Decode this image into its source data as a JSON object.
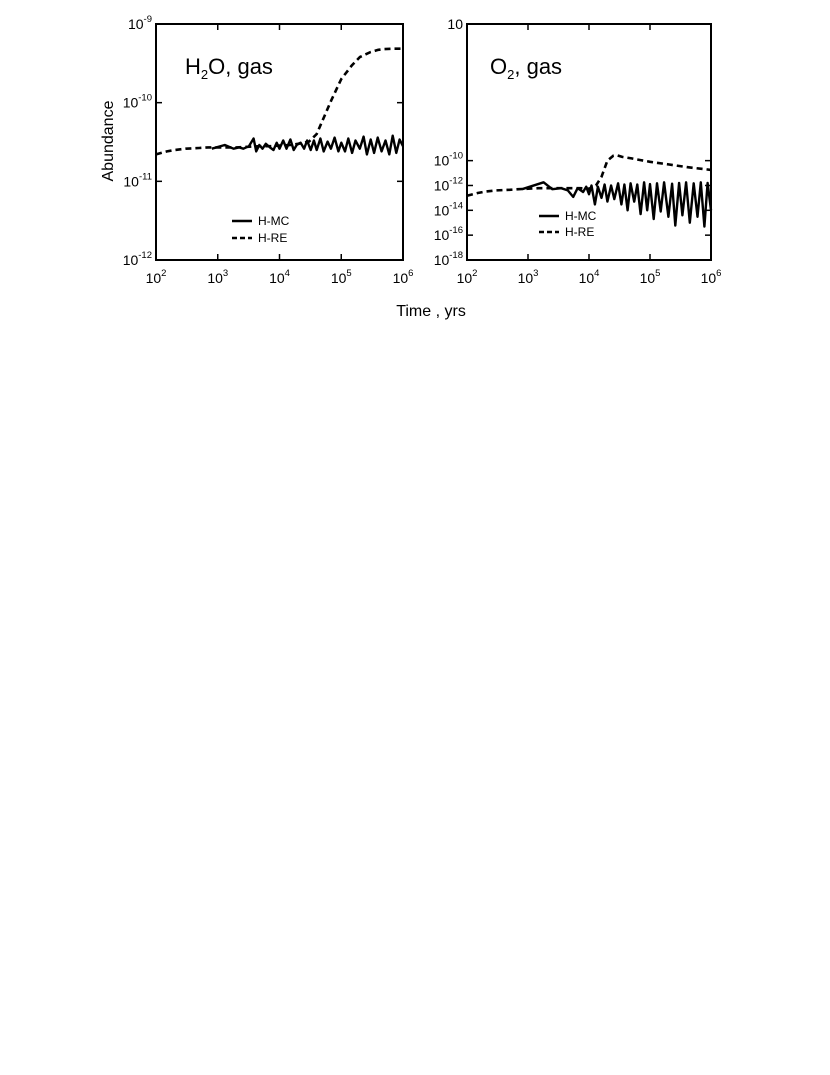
{
  "figure": {
    "xlabel": "Time , yrs",
    "ylabel": "Abundance"
  },
  "chart_data": [
    {
      "type": "line",
      "title": {
        "base": "H",
        "sub": "2",
        "rest": "O, gas"
      },
      "xlabel": "Time , yrs",
      "ylabel": "Abundance",
      "xscale": "log",
      "yscale": "log",
      "xlim": [
        100,
        1000000
      ],
      "ylim": [
        1e-12,
        1e-09
      ],
      "xticks": [
        {
          "base": "10",
          "exp": "2",
          "value": 100
        },
        {
          "base": "10",
          "exp": "3",
          "value": 1000
        },
        {
          "base": "10",
          "exp": "4",
          "value": 10000
        },
        {
          "base": "10",
          "exp": "5",
          "value": 100000
        },
        {
          "base": "10",
          "exp": "6",
          "value": 1000000
        }
      ],
      "yticks": [
        {
          "base": "10",
          "exp": "-12",
          "value": 1e-12
        },
        {
          "base": "10",
          "exp": "-11",
          "value": 1e-11
        },
        {
          "base": "10",
          "exp": "-10",
          "value": 1e-10
        },
        {
          "base": "10",
          "exp": "-9",
          "value": 1e-09
        }
      ],
      "legend_position": "bottom-center",
      "series": [
        {
          "name": "H-MC",
          "style": "solid",
          "x": [
            800,
            1300,
            1800,
            2200,
            2600,
            3200,
            3800,
            4200,
            4700,
            5300,
            6000,
            7000,
            8000,
            9000,
            10000,
            11500,
            13000,
            15000,
            17000,
            19000,
            22000,
            25000,
            28000,
            32000,
            36000,
            40000,
            46000,
            52000,
            60000,
            68000,
            78000,
            90000,
            100000,
            115000,
            130000,
            150000,
            170000,
            200000,
            230000,
            260000,
            300000,
            340000,
            390000,
            450000,
            520000,
            600000,
            680000,
            780000,
            880000,
            1000000
          ],
          "y": [
            2.6e-11,
            2.9e-11,
            2.6e-11,
            2.7e-11,
            2.6e-11,
            2.8e-11,
            3.5e-11,
            2.4e-11,
            2.9e-11,
            2.6e-11,
            3e-11,
            2.7e-11,
            2.5e-11,
            3.1e-11,
            2.6e-11,
            3.3e-11,
            2.6e-11,
            3.4e-11,
            2.5e-11,
            2.9e-11,
            3.1e-11,
            2.6e-11,
            3.3e-11,
            2.5e-11,
            3.3e-11,
            2.5e-11,
            3.5e-11,
            2.4e-11,
            3.2e-11,
            2.6e-11,
            3.6e-11,
            2.4e-11,
            3.1e-11,
            2.4e-11,
            3.5e-11,
            2.3e-11,
            3.3e-11,
            2.6e-11,
            3.7e-11,
            2.2e-11,
            3.4e-11,
            2.3e-11,
            3.6e-11,
            2.4e-11,
            3.3e-11,
            2.2e-11,
            3.8e-11,
            2.3e-11,
            3.4e-11,
            2.8e-11
          ]
        },
        {
          "name": "H-RE",
          "style": "dashed",
          "x": [
            100,
            150,
            200,
            300,
            500,
            700,
            1000,
            1500,
            2000,
            3000,
            5000,
            7000,
            10000,
            15000,
            20000,
            30000,
            40000,
            50000,
            70000,
            100000,
            150000,
            200000,
            300000,
            400000,
            500000,
            700000,
            1000000
          ],
          "y": [
            2.2e-11,
            2.4e-11,
            2.5e-11,
            2.6e-11,
            2.65e-11,
            2.7e-11,
            2.7e-11,
            2.7e-11,
            2.7e-11,
            2.75e-11,
            2.8e-11,
            2.8e-11,
            2.85e-11,
            2.9e-11,
            3e-11,
            3.2e-11,
            4e-11,
            6e-11,
            1.1e-10,
            2e-10,
            3e-10,
            3.8e-10,
            4.4e-10,
            4.7e-10,
            4.8e-10,
            4.85e-10,
            4.85e-10
          ]
        }
      ]
    },
    {
      "type": "line",
      "title": {
        "base": "O",
        "sub": "2",
        "rest": ", gas"
      },
      "xlabel": "Time , yrs",
      "ylabel": "",
      "xscale": "log",
      "yscale": "log",
      "xlim": [
        100,
        1000000
      ],
      "ylim": [
        1e-18,
        10
      ],
      "xticks": [
        {
          "base": "10",
          "exp": "2",
          "value": 100
        },
        {
          "base": "10",
          "exp": "3",
          "value": 1000
        },
        {
          "base": "10",
          "exp": "4",
          "value": 10000
        },
        {
          "base": "10",
          "exp": "5",
          "value": 100000
        },
        {
          "base": "10",
          "exp": "6",
          "value": 1000000
        }
      ],
      "yticks": [
        {
          "base": "10",
          "exp": "-18",
          "value": 1e-18
        },
        {
          "base": "10",
          "exp": "-16",
          "value": 1e-16
        },
        {
          "base": "10",
          "exp": "-14",
          "value": 1e-14
        },
        {
          "base": "10",
          "exp": "-12",
          "value": 1e-12
        },
        {
          "base": "10",
          "exp": "-10",
          "value": 1e-10
        },
        {
          "base": "10",
          "exp": "",
          "value": 10
        }
      ],
      "legend_position": "bottom-center",
      "series": [
        {
          "name": "H-MC",
          "style": "solid",
          "x": [
            800,
            1800,
            2500,
            3500,
            4500,
            5500,
            6500,
            8000,
            9000,
            10000,
            11000,
            12500,
            14000,
            16000,
            18000,
            20000,
            23000,
            26000,
            30000,
            34000,
            38000,
            43000,
            48000,
            55000,
            62000,
            70000,
            80000,
            90000,
            100000,
            115000,
            130000,
            150000,
            170000,
            200000,
            230000,
            260000,
            300000,
            340000,
            390000,
            450000,
            520000,
            600000,
            680000,
            780000,
            880000,
            1000000
          ],
          "y": [
            5e-13,
            1.8e-12,
            5e-13,
            6e-13,
            4e-13,
            1.2e-13,
            6e-13,
            3e-13,
            8e-13,
            2e-13,
            1e-12,
            3e-14,
            8e-13,
            1e-13,
            1.2e-12,
            5e-14,
            1e-12,
            8e-14,
            1.5e-12,
            3e-14,
            1.2e-12,
            1e-14,
            1.5e-12,
            5e-14,
            1.2e-12,
            5e-15,
            1.8e-12,
            1e-14,
            1.3e-12,
            2e-15,
            1.5e-12,
            8e-15,
            1.8e-12,
            3e-15,
            1.4e-12,
            6e-16,
            1.6e-12,
            4e-15,
            1.8e-12,
            1e-15,
            1.5e-12,
            3e-15,
            1.8e-12,
            5e-16,
            1.6e-12,
            1e-14
          ]
        },
        {
          "name": "H-RE",
          "style": "dashed",
          "x": [
            100,
            150,
            200,
            300,
            500,
            700,
            1000,
            1500,
            2000,
            3000,
            5000,
            7000,
            10000,
            13000,
            16000,
            20000,
            25000,
            28000,
            35000,
            50000,
            70000,
            100000,
            200000,
            400000,
            700000,
            1000000
          ],
          "y": [
            1.5e-13,
            2.5e-13,
            3.2e-13,
            4e-13,
            4.5e-13,
            5e-13,
            5.5e-13,
            6e-13,
            6e-13,
            6e-13,
            6e-13,
            6e-13,
            5.5e-13,
            1e-12,
            5e-12,
            1e-10,
            2.5e-10,
            2.8e-10,
            2e-10,
            1.5e-10,
            1.1e-10,
            8e-11,
            5e-11,
            3e-11,
            2.2e-11,
            1.8e-11
          ]
        }
      ]
    }
  ]
}
